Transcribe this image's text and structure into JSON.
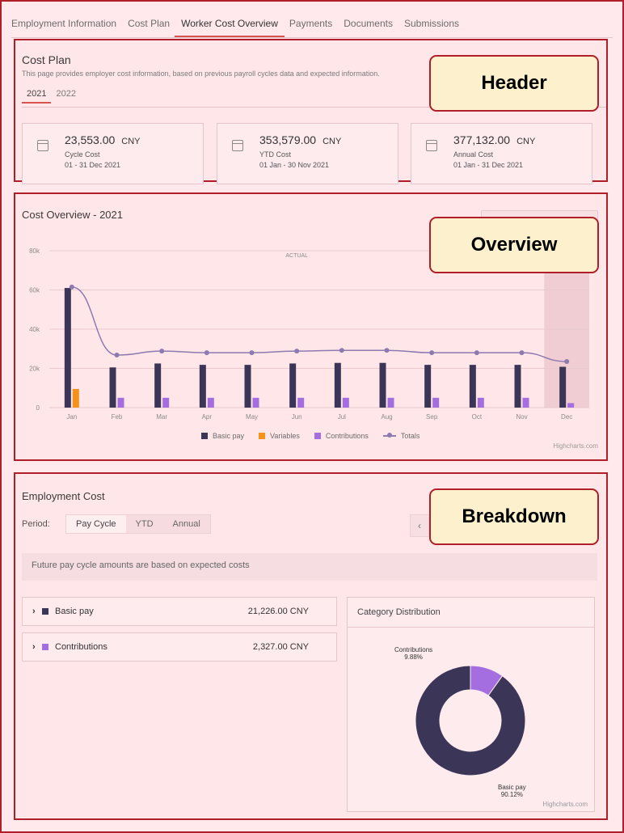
{
  "nav": {
    "tabs": [
      {
        "label": "Employment Information"
      },
      {
        "label": "Cost Plan"
      },
      {
        "label": "Worker Cost Overview",
        "active": true
      },
      {
        "label": "Payments"
      },
      {
        "label": "Documents"
      },
      {
        "label": "Submissions"
      }
    ]
  },
  "callouts": {
    "header": "Header",
    "overview": "Overview",
    "breakdown": "Breakdown"
  },
  "cost_plan": {
    "title": "Cost Plan",
    "description": "This page provides employer cost information, based on previous payroll cycles data and expected information.",
    "years": [
      "2021",
      "2022"
    ],
    "selected_year": "2021",
    "stats": [
      {
        "amount": "23,553.00",
        "currency": "CNY",
        "label": "Cycle Cost",
        "range": "01 - 31 Dec 2021",
        "icon": "calendar-icon"
      },
      {
        "amount": "353,579.00",
        "currency": "CNY",
        "label": "YTD Cost",
        "range": "01 Jan - 30 Nov 2021",
        "icon": "calendar-check-icon"
      },
      {
        "amount": "377,132.00",
        "currency": "CNY",
        "label": "Annual Cost",
        "range": "01 Jan - 31 Dec 2021",
        "icon": "calendar-icon"
      }
    ]
  },
  "overview": {
    "title": "Cost Overview - 2021",
    "credit": "Highcharts.com"
  },
  "chart_data": {
    "type": "bar",
    "annotation": "ACTUAL",
    "categories": [
      "Jan",
      "Feb",
      "Mar",
      "Apr",
      "May",
      "Jun",
      "Jul",
      "Aug",
      "Sep",
      "Oct",
      "Nov",
      "Dec"
    ],
    "ylim": [
      0,
      80000
    ],
    "yticks": [
      "0",
      "20k",
      "40k",
      "60k",
      "80k"
    ],
    "yticks_values": [
      0,
      20000,
      40000,
      60000,
      80000
    ],
    "series": [
      {
        "name": "Basic pay",
        "type": "bar",
        "color": "#3b3558",
        "values": [
          61000,
          20500,
          22500,
          21800,
          21800,
          22500,
          22800,
          22800,
          21800,
          21800,
          21800,
          20800
        ]
      },
      {
        "name": "Variables",
        "type": "bar",
        "color": "#f5921e",
        "values": [
          9500,
          0,
          0,
          0,
          0,
          0,
          0,
          0,
          0,
          0,
          0,
          0
        ]
      },
      {
        "name": "Contributions",
        "type": "bar",
        "color": "#a56ee0",
        "values": [
          0,
          5000,
          5000,
          5000,
          5000,
          5000,
          5000,
          5000,
          5000,
          5000,
          5000,
          2300
        ]
      },
      {
        "name": "Totals",
        "type": "line",
        "color": "#8c7ab0",
        "values": [
          61500,
          26800,
          28800,
          28000,
          28000,
          28800,
          29200,
          29200,
          28000,
          28000,
          28000,
          23500
        ]
      }
    ],
    "highlight_category": "Dec",
    "grid": true,
    "legend": "bottom"
  },
  "breakdown": {
    "title": "Employment Cost",
    "period_label": "Period:",
    "periods": [
      "Pay Cycle",
      "YTD",
      "Annual"
    ],
    "selected_period": "Pay Cycle",
    "prev_icon": "chevron-left-icon",
    "notice": "Future pay cycle amounts are based on expected costs",
    "categories": [
      {
        "name": "Basic pay",
        "amount": "21,226.00 CNY",
        "color": "#3b3558"
      },
      {
        "name": "Contributions",
        "amount": "2,327.00 CNY",
        "color": "#a56ee0"
      }
    ],
    "distribution": {
      "title": "Category Distribution",
      "credit": "Highcharts.com",
      "chart_data": {
        "type": "pie",
        "slices": [
          {
            "name": "Basic pay",
            "value": 90.12,
            "label": "90.12%",
            "color": "#3b3558"
          },
          {
            "name": "Contributions",
            "value": 9.88,
            "label": "9.88%",
            "color": "#a56ee0"
          }
        ]
      }
    }
  }
}
